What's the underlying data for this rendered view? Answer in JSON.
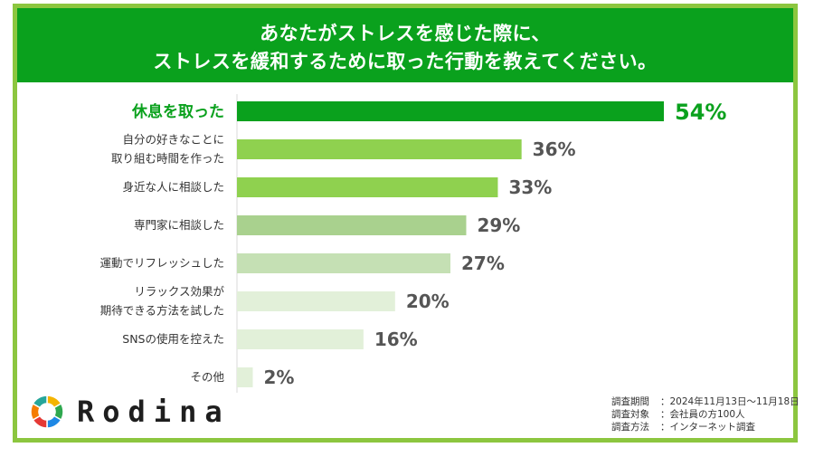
{
  "header": {
    "title_line1": "あなたがストレスを感じた際に、",
    "title_line2": "ストレスを緩和するために取った行動を教えてください。",
    "bg_color": "#0aa11d"
  },
  "chart_data": {
    "type": "bar",
    "orientation": "horizontal",
    "categories": [
      [
        "休息を取った"
      ],
      [
        "自分の好きなことに",
        "取り組む時間を作った"
      ],
      [
        "身近な人に相談した"
      ],
      [
        "専門家に相談した"
      ],
      [
        "運動でリフレッシュした"
      ],
      [
        "リラックス効果が",
        "期待できる方法を試した"
      ],
      [
        "SNSの使用を控えた"
      ],
      [
        "その他"
      ]
    ],
    "values": [
      54,
      36,
      33,
      29,
      27,
      20,
      16,
      2
    ],
    "value_labels": [
      "54%",
      "36%",
      "33%",
      "29%",
      "27%",
      "20%",
      "16%",
      "2%"
    ],
    "bar_colors": [
      "#0aa11d",
      "#8fd14f",
      "#8fd14f",
      "#a9d18e",
      "#c5e0b4",
      "#e2f0d9",
      "#e2f0d9",
      "#e2f0d9"
    ],
    "highlight_index": 0,
    "xlim": [
      0,
      54
    ],
    "grid": false,
    "title": "",
    "xlabel": "",
    "ylabel": ""
  },
  "logo": {
    "text": "Rodina",
    "colors": [
      "#f4b400",
      "#2fa84f",
      "#1e88e5",
      "#e53935",
      "#f57c00",
      "#26a69a"
    ]
  },
  "survey_notes": [
    {
      "label": "調査期間",
      "value": "2024年11月13日～11月18日"
    },
    {
      "label": "調査対象",
      "value": "会社員の方100人"
    },
    {
      "label": "調査方法",
      "value": "インターネット調査"
    }
  ]
}
